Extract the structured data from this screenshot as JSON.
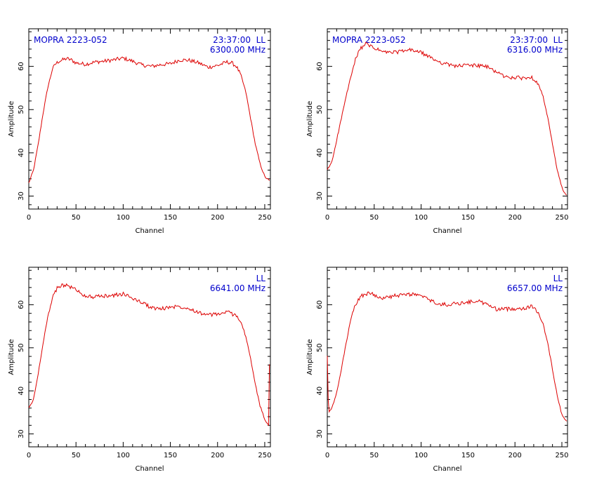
{
  "chart_data": [
    {
      "type": "line",
      "source_label": "MOPRA 2223-052",
      "time_label": "23:37:00",
      "pol_label": "LL",
      "freq_label": "6300.00 MHz",
      "xlabel": "Channel",
      "ylabel": "Amplitude",
      "xlim": [
        0,
        256
      ],
      "ylim": [
        27,
        68.7
      ],
      "xticks": [
        "0",
        "50",
        "100",
        "150",
        "200",
        "250"
      ],
      "yticks": [
        "30",
        "40",
        "50",
        "60"
      ],
      "line_color": "#dd0000",
      "text_color": "#0000cc",
      "series": [
        {
          "x": [
            0,
            5,
            10,
            15,
            20,
            25,
            28,
            32,
            40,
            45,
            50,
            60,
            70,
            80,
            90,
            100,
            110,
            120,
            130,
            140,
            150,
            160,
            170,
            180,
            190,
            200,
            210,
            215,
            220,
            225,
            230,
            235,
            240,
            245,
            250,
            255
          ],
          "values": [
            33,
            36,
            42,
            49,
            55,
            59.3,
            60.5,
            61.2,
            61.8,
            61.5,
            60.8,
            60.5,
            61,
            61.2,
            61.5,
            61.9,
            61.2,
            60.3,
            60,
            60.4,
            60.6,
            61.5,
            61.4,
            60.8,
            59.8,
            60.2,
            61,
            60.8,
            60,
            57.8,
            54,
            48,
            42,
            37.5,
            34.5,
            33.5
          ]
        }
      ]
    },
    {
      "type": "line",
      "source_label": "MOPRA 2223-052",
      "time_label": "23:37:00",
      "pol_label": "LL",
      "freq_label": "6316.00 MHz",
      "xlabel": "Channel",
      "ylabel": "Amplitude",
      "xlim": [
        0,
        256
      ],
      "ylim": [
        27,
        68.7
      ],
      "xticks": [
        "0",
        "50",
        "100",
        "150",
        "200",
        "250"
      ],
      "yticks": [
        "30",
        "40",
        "50",
        "60"
      ],
      "line_color": "#dd0000",
      "text_color": "#0000cc",
      "series": [
        {
          "x": [
            0,
            5,
            10,
            15,
            20,
            25,
            30,
            35,
            40,
            45,
            50,
            60,
            70,
            80,
            90,
            100,
            110,
            120,
            130,
            140,
            150,
            160,
            170,
            180,
            190,
            200,
            210,
            215,
            220,
            225,
            230,
            235,
            240,
            245,
            250,
            255
          ],
          "values": [
            36,
            38,
            43,
            48,
            53,
            57.5,
            61.5,
            64,
            65.2,
            64.8,
            64.2,
            63.3,
            63.2,
            63.5,
            63.8,
            63.2,
            62,
            61,
            60.3,
            60.1,
            60.3,
            60.2,
            59.9,
            58.8,
            57.5,
            57.4,
            57.3,
            57.5,
            57.2,
            56,
            53,
            48,
            42,
            36,
            32,
            30
          ]
        }
      ]
    },
    {
      "type": "line",
      "source_label": "",
      "time_label": "",
      "pol_label": "LL",
      "freq_label": "6641.00 MHz",
      "xlabel": "Channel",
      "ylabel": "Amplitude",
      "xlim": [
        0,
        256
      ],
      "ylim": [
        27,
        68.7
      ],
      "xticks": [
        "0",
        "50",
        "100",
        "150",
        "200",
        "250"
      ],
      "yticks": [
        "30",
        "40",
        "50",
        "60"
      ],
      "line_color": "#dd0000",
      "text_color": "#0000cc",
      "series": [
        {
          "x": [
            0,
            5,
            10,
            15,
            20,
            25,
            30,
            35,
            40,
            50,
            60,
            70,
            80,
            90,
            100,
            110,
            120,
            130,
            140,
            150,
            160,
            170,
            180,
            190,
            200,
            210,
            220,
            225,
            230,
            235,
            240,
            245,
            250,
            254,
            255
          ],
          "values": [
            36,
            38,
            44,
            51,
            57,
            61.5,
            63.8,
            64.6,
            64.5,
            63.5,
            62,
            61.8,
            62,
            62.2,
            62.5,
            61.5,
            60.5,
            59.3,
            59,
            59.5,
            59.6,
            59.2,
            58.2,
            57.6,
            57.8,
            58.3,
            57.5,
            56,
            52.5,
            47.5,
            41.5,
            36.5,
            33.5,
            32,
            46
          ]
        }
      ]
    },
    {
      "type": "line",
      "source_label": "",
      "time_label": "",
      "pol_label": "LL",
      "freq_label": "6657.00 MHz",
      "xlabel": "Channel",
      "ylabel": "Amplitude",
      "xlim": [
        0,
        256
      ],
      "ylim": [
        27,
        68.7
      ],
      "xticks": [
        "0",
        "50",
        "100",
        "150",
        "200",
        "250"
      ],
      "yticks": [
        "30",
        "40",
        "50",
        "60"
      ],
      "line_color": "#dd0000",
      "text_color": "#0000cc",
      "series": [
        {
          "x": [
            0,
            1,
            2,
            5,
            10,
            15,
            20,
            25,
            30,
            35,
            40,
            45,
            50,
            60,
            70,
            80,
            90,
            100,
            110,
            120,
            130,
            140,
            150,
            160,
            170,
            180,
            190,
            200,
            210,
            218,
            222,
            225,
            230,
            235,
            240,
            245,
            250,
            255
          ],
          "values": [
            48,
            38,
            35,
            36,
            39.5,
            45,
            51,
            56.5,
            60,
            61.8,
            62.5,
            62.7,
            62.3,
            61.5,
            62,
            62.2,
            62.5,
            62,
            61,
            60,
            60.1,
            60.3,
            60.6,
            60.9,
            60.1,
            59,
            59,
            59.1,
            59.2,
            59.6,
            59.1,
            58,
            55.5,
            51,
            45,
            39,
            34.5,
            33
          ]
        }
      ]
    }
  ]
}
